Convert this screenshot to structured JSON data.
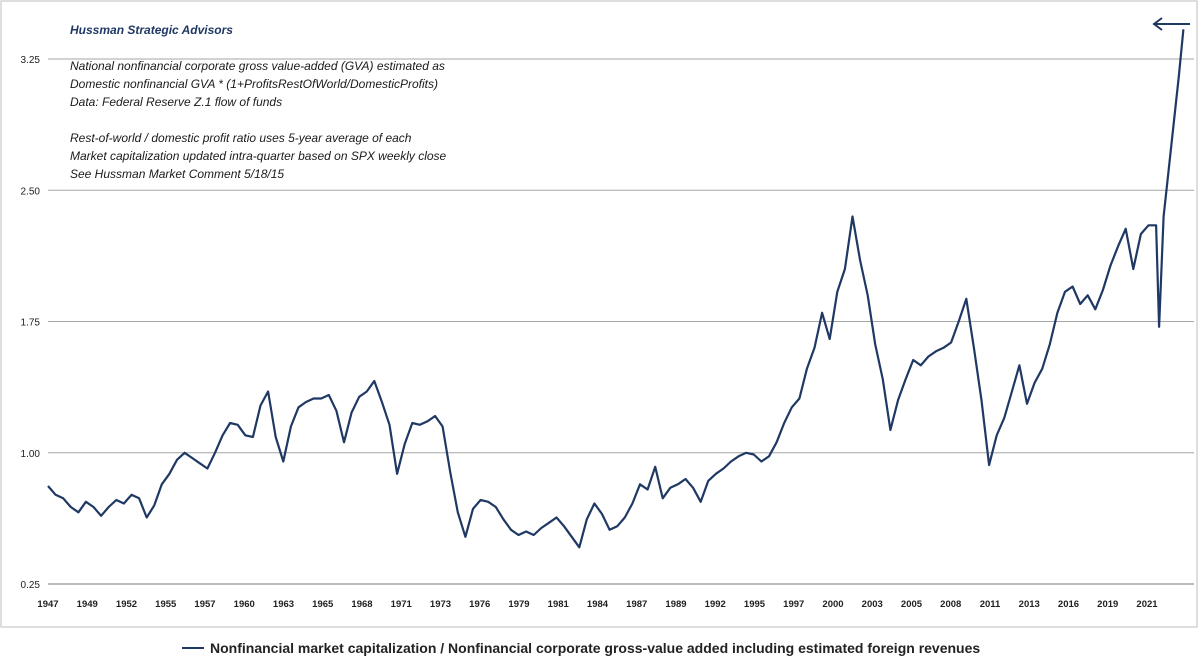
{
  "chart_data": {
    "type": "line",
    "title": "Hussman Strategic Advisors",
    "notes": [
      "National nonfinancial corporate gross value-added (GVA) estimated as",
      "Domestic nonfinancial GVA * (1+ProfitsRestOfWorld/DomesticProfits)",
      "Data: Federal Reserve Z.1 flow of funds",
      "",
      "Rest-of-world / domestic profit ratio uses 5-year average of each",
      "Market capitalization updated intra-quarter  based on SPX weekly close",
      "See Hussman Market Comment 5/18/15"
    ],
    "x_tick_labels": [
      "1947",
      "1949",
      "1952",
      "1955",
      "1957",
      "1960",
      "1963",
      "1965",
      "1968",
      "1971",
      "1973",
      "1976",
      "1979",
      "1981",
      "1984",
      "1987",
      "1989",
      "1992",
      "1995",
      "1997",
      "2000",
      "2003",
      "2005",
      "2008",
      "2011",
      "2013",
      "2016",
      "2019",
      "2021"
    ],
    "y_ticks": [
      0.25,
      1.0,
      1.75,
      2.5,
      3.25
    ],
    "y_tick_labels": [
      "0.25",
      "1.00",
      "1.75",
      "2.50",
      "3.25"
    ],
    "ylim": [
      0.25,
      3.55
    ],
    "xlim": [
      1947.0,
      2022.5
    ],
    "grid": "horizontal",
    "legend": "bottom",
    "series": [
      {
        "name": "Nonfinancial market capitalization / Nonfinancial corporate gross-value added including estimated foreign revenues",
        "color": "#1f3864",
        "x": [
          1947.0,
          1947.5,
          1948.0,
          1948.5,
          1949.0,
          1949.5,
          1950.0,
          1950.5,
          1951.0,
          1951.5,
          1952.0,
          1952.5,
          1953.0,
          1953.5,
          1954.0,
          1954.5,
          1955.0,
          1955.5,
          1956.0,
          1956.5,
          1957.0,
          1957.5,
          1958.0,
          1958.5,
          1959.0,
          1959.5,
          1960.0,
          1960.5,
          1961.0,
          1961.5,
          1962.0,
          1962.5,
          1963.0,
          1963.5,
          1964.0,
          1964.5,
          1965.0,
          1965.5,
          1966.0,
          1966.5,
          1967.0,
          1967.5,
          1968.0,
          1968.5,
          1969.0,
          1969.5,
          1970.0,
          1970.5,
          1971.0,
          1971.5,
          1972.0,
          1972.5,
          1973.0,
          1973.5,
          1974.0,
          1974.5,
          1975.0,
          1975.5,
          1976.0,
          1976.5,
          1977.0,
          1977.5,
          1978.0,
          1978.5,
          1979.0,
          1979.5,
          1980.0,
          1980.5,
          1981.0,
          1981.5,
          1982.0,
          1982.5,
          1983.0,
          1983.5,
          1984.0,
          1984.5,
          1985.0,
          1985.5,
          1986.0,
          1986.5,
          1987.0,
          1987.5,
          1988.0,
          1988.5,
          1989.0,
          1989.5,
          1990.0,
          1990.5,
          1991.0,
          1991.5,
          1992.0,
          1992.5,
          1993.0,
          1993.5,
          1994.0,
          1994.5,
          1995.0,
          1995.5,
          1996.0,
          1996.5,
          1997.0,
          1997.5,
          1998.0,
          1998.5,
          1999.0,
          1999.5,
          2000.0,
          2000.5,
          2001.0,
          2001.5,
          2002.0,
          2002.5,
          2003.0,
          2003.5,
          2004.0,
          2004.5,
          2005.0,
          2005.5,
          2006.0,
          2006.5,
          2007.0,
          2007.5,
          2008.0,
          2008.5,
          2009.0,
          2009.5,
          2010.0,
          2010.5,
          2011.0,
          2011.5,
          2012.0,
          2012.5,
          2013.0,
          2013.5,
          2014.0,
          2014.5,
          2015.0,
          2015.5,
          2016.0,
          2016.5,
          2017.0,
          2017.5,
          2018.0,
          2018.5,
          2019.0,
          2019.5,
          2020.0,
          2020.2,
          2020.5,
          2021.0,
          2021.5,
          2021.8
        ],
        "values": [
          0.81,
          0.76,
          0.74,
          0.69,
          0.66,
          0.72,
          0.69,
          0.64,
          0.69,
          0.73,
          0.71,
          0.76,
          0.74,
          0.63,
          0.7,
          0.82,
          0.88,
          0.96,
          1.0,
          0.97,
          0.94,
          0.91,
          1.0,
          1.1,
          1.17,
          1.16,
          1.1,
          1.09,
          1.27,
          1.35,
          1.09,
          0.95,
          1.15,
          1.26,
          1.29,
          1.31,
          1.31,
          1.33,
          1.24,
          1.06,
          1.23,
          1.32,
          1.35,
          1.41,
          1.29,
          1.16,
          0.88,
          1.05,
          1.17,
          1.16,
          1.18,
          1.21,
          1.15,
          0.89,
          0.66,
          0.52,
          0.68,
          0.73,
          0.72,
          0.69,
          0.62,
          0.56,
          0.53,
          0.55,
          0.53,
          0.57,
          0.6,
          0.63,
          0.58,
          0.52,
          0.46,
          0.62,
          0.71,
          0.65,
          0.56,
          0.58,
          0.63,
          0.71,
          0.82,
          0.79,
          0.92,
          0.74,
          0.8,
          0.82,
          0.85,
          0.8,
          0.72,
          0.84,
          0.88,
          0.91,
          0.95,
          0.98,
          1.0,
          0.99,
          0.95,
          0.98,
          1.06,
          1.17,
          1.26,
          1.31,
          1.48,
          1.6,
          1.8,
          1.65,
          1.92,
          2.05,
          2.35,
          2.1,
          1.9,
          1.62,
          1.42,
          1.13,
          1.3,
          1.42,
          1.53,
          1.5,
          1.55,
          1.58,
          1.6,
          1.63,
          1.75,
          1.88,
          1.6,
          1.3,
          0.93,
          1.1,
          1.2,
          1.35,
          1.5,
          1.28,
          1.4,
          1.48,
          1.62,
          1.8,
          1.92,
          1.95,
          1.85,
          1.9,
          1.82,
          1.93,
          2.07,
          2.18,
          2.28,
          2.05,
          2.25,
          2.3,
          2.3,
          1.72,
          2.35,
          2.75,
          3.15,
          3.42
        ]
      }
    ]
  }
}
